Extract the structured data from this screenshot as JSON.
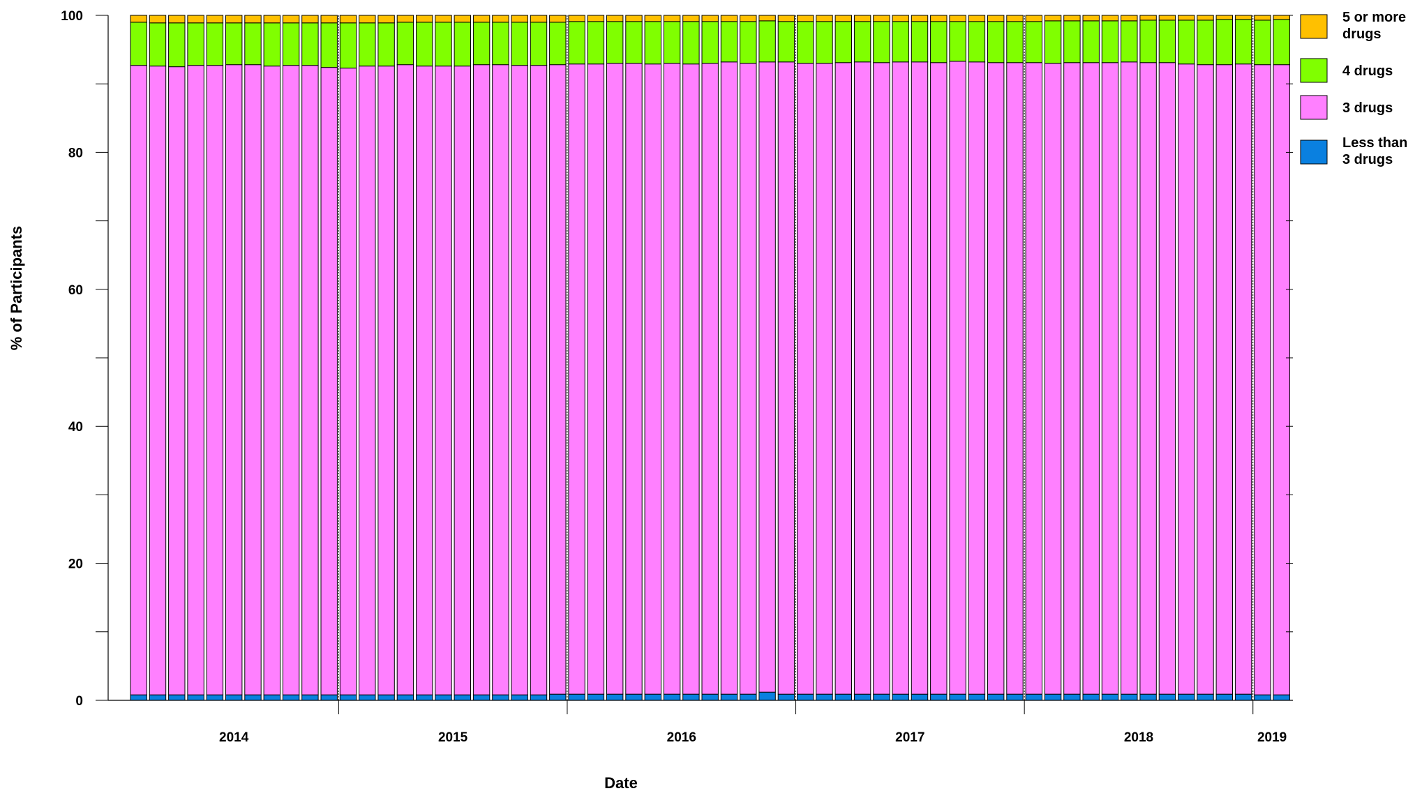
{
  "chart_data": {
    "type": "bar",
    "stacked": true,
    "xlabel": "Date",
    "ylabel": "% of Participants",
    "ylim": [
      0,
      100
    ],
    "yticks": [
      0,
      20,
      40,
      60,
      80,
      100
    ],
    "grid": false,
    "legend_position": "right",
    "year_labels": [
      {
        "label": "2014",
        "start_index": 0,
        "end_index": 10
      },
      {
        "label": "2015",
        "start_index": 11,
        "end_index": 22
      },
      {
        "label": "2016",
        "start_index": 23,
        "end_index": 34
      },
      {
        "label": "2017",
        "start_index": 35,
        "end_index": 46
      },
      {
        "label": "2018",
        "start_index": 47,
        "end_index": 58
      },
      {
        "label": "2019",
        "start_index": 59,
        "end_index": 60
      }
    ],
    "bar_count": 61,
    "series": [
      {
        "name": "Less than 3 drugs",
        "legend_lines": [
          "Less than",
          "3 drugs"
        ],
        "color": "#0a80e0",
        "values": [
          0.8,
          0.8,
          0.8,
          0.8,
          0.8,
          0.8,
          0.8,
          0.8,
          0.8,
          0.8,
          0.8,
          0.8,
          0.8,
          0.8,
          0.8,
          0.8,
          0.8,
          0.8,
          0.8,
          0.8,
          0.8,
          0.8,
          0.9,
          0.9,
          0.9,
          0.9,
          0.9,
          0.9,
          0.9,
          0.9,
          0.9,
          0.9,
          0.9,
          1.2,
          0.9,
          0.9,
          0.9,
          0.9,
          0.9,
          0.9,
          0.9,
          0.9,
          0.9,
          0.9,
          0.9,
          0.9,
          0.9,
          0.9,
          0.9,
          0.9,
          0.9,
          0.9,
          0.9,
          0.9,
          0.9,
          0.9,
          0.9,
          0.9,
          0.9,
          0.8,
          0.8
        ]
      },
      {
        "name": "3 drugs",
        "legend_lines": [
          "3 drugs"
        ],
        "color": "#ff80ff",
        "values": [
          91.9,
          91.8,
          91.7,
          91.9,
          91.9,
          92.0,
          92.0,
          91.8,
          91.9,
          91.9,
          91.6,
          91.5,
          91.8,
          91.8,
          92.0,
          91.8,
          91.8,
          91.8,
          92.0,
          92.0,
          91.9,
          91.9,
          91.9,
          92.0,
          92.0,
          92.1,
          92.1,
          92.0,
          92.1,
          92.0,
          92.1,
          92.3,
          92.1,
          92.0,
          92.3,
          92.1,
          92.1,
          92.2,
          92.3,
          92.2,
          92.3,
          92.3,
          92.2,
          92.4,
          92.3,
          92.2,
          92.2,
          92.2,
          92.1,
          92.2,
          92.2,
          92.2,
          92.3,
          92.2,
          92.2,
          92.0,
          91.9,
          91.9,
          92.0,
          92.0,
          92.0
        ]
      },
      {
        "name": "4 drugs",
        "legend_lines": [
          "4 drugs"
        ],
        "color": "#80ff00",
        "values": [
          6.3,
          6.3,
          6.4,
          6.2,
          6.2,
          6.1,
          6.1,
          6.3,
          6.2,
          6.2,
          6.5,
          6.6,
          6.3,
          6.3,
          6.2,
          6.4,
          6.4,
          6.4,
          6.2,
          6.2,
          6.3,
          6.3,
          6.2,
          6.2,
          6.2,
          6.1,
          6.1,
          6.2,
          6.1,
          6.2,
          6.1,
          5.9,
          6.1,
          6.0,
          5.9,
          6.1,
          6.1,
          6.0,
          5.9,
          6.0,
          5.9,
          5.9,
          6.0,
          5.8,
          5.9,
          6.0,
          6.0,
          6.0,
          6.2,
          6.1,
          6.1,
          6.1,
          6.0,
          6.2,
          6.2,
          6.4,
          6.5,
          6.6,
          6.5,
          6.5,
          6.6
        ]
      },
      {
        "name": "5 or more drugs",
        "legend_lines": [
          "5 or more",
          "drugs"
        ],
        "color": "#ffc000",
        "values": [
          1.0,
          1.1,
          1.1,
          1.1,
          1.1,
          1.1,
          1.1,
          1.1,
          1.1,
          1.1,
          1.1,
          1.1,
          1.1,
          1.1,
          1.0,
          1.0,
          1.0,
          1.0,
          1.0,
          1.0,
          1.0,
          1.0,
          1.0,
          0.9,
          0.9,
          0.9,
          0.9,
          0.9,
          0.9,
          0.9,
          0.9,
          0.9,
          0.9,
          0.8,
          0.9,
          0.9,
          0.9,
          0.9,
          0.9,
          0.9,
          0.9,
          0.9,
          0.9,
          0.9,
          0.9,
          0.9,
          0.9,
          0.9,
          0.8,
          0.8,
          0.8,
          0.8,
          0.8,
          0.7,
          0.7,
          0.7,
          0.7,
          0.6,
          0.6,
          0.7,
          0.6
        ]
      }
    ]
  }
}
